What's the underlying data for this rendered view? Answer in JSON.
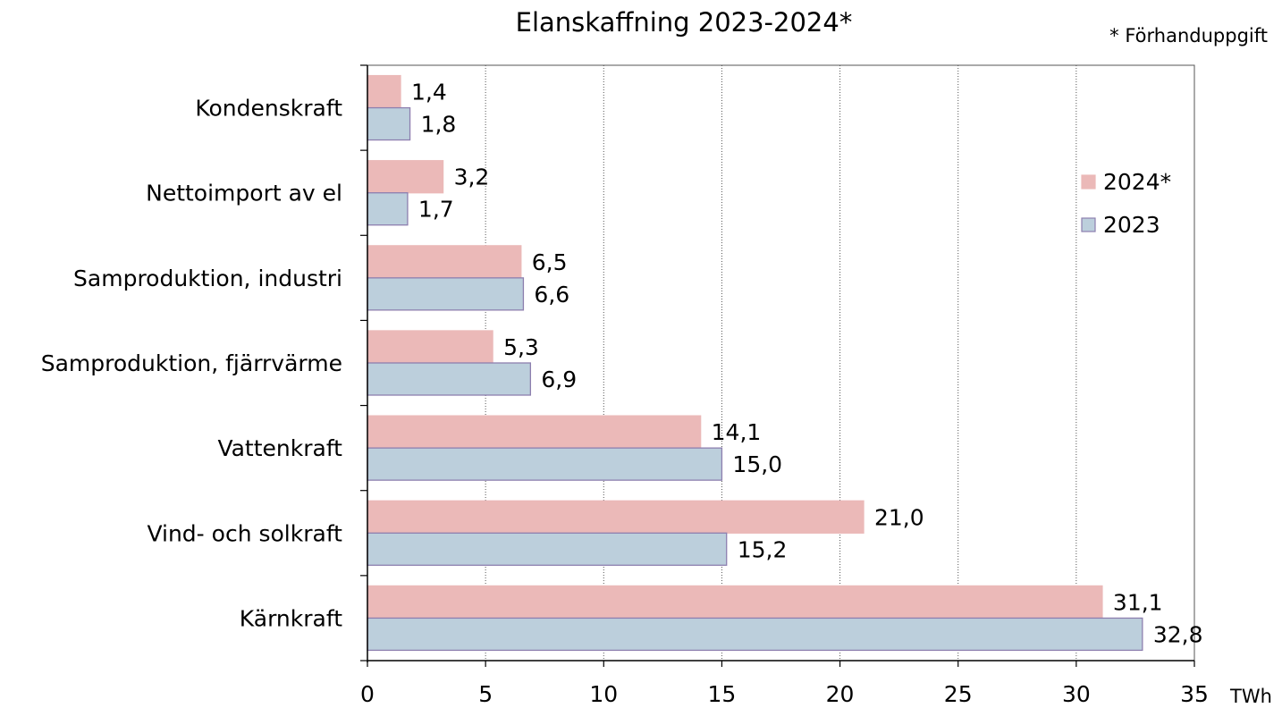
{
  "chart_data": {
    "type": "bar",
    "orientation": "horizontal",
    "title": "Elanskaffning  2023-2024*",
    "note": "* Förhanduppgift",
    "xlabel": "",
    "unit": "TWh",
    "xlim": [
      0,
      35
    ],
    "xticks": [
      0,
      5,
      10,
      15,
      20,
      25,
      30,
      35
    ],
    "grid": "vertical dotted",
    "legend_position": "right",
    "categories": [
      "Kondenskraft",
      "Nettoimport av el",
      "Samproduktion, industri",
      "Samproduktion, fjärrvärme",
      "Vattenkraft",
      "Vind- och solkraft",
      "Kärnkraft"
    ],
    "series": [
      {
        "name": "2024*",
        "color": "#ebb9b8",
        "border": "#ebb9b8",
        "values": [
          1.4,
          3.2,
          6.5,
          5.3,
          14.1,
          21.0,
          31.1
        ],
        "labels": [
          "1,4",
          "3,2",
          "6,5",
          "5,3",
          "14,1",
          "21,0",
          "31,1"
        ]
      },
      {
        "name": "2023",
        "color": "#bccfdc",
        "border": "#8d7faf",
        "values": [
          1.8,
          1.7,
          6.6,
          6.9,
          15.0,
          15.2,
          32.8
        ],
        "labels": [
          "1,8",
          "1,7",
          "6,6",
          "6,9",
          "15,0",
          "15,2",
          "32,8"
        ]
      }
    ]
  }
}
